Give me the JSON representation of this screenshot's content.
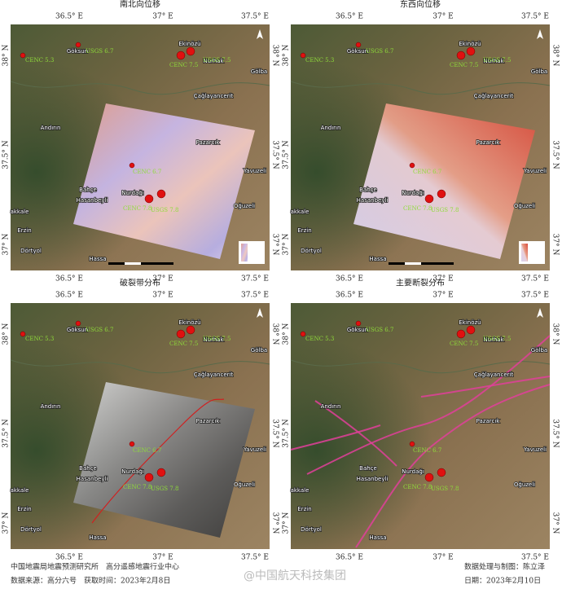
{
  "panels": [
    {
      "title": "南北向位移"
    },
    {
      "title": "东西向位移"
    },
    {
      "title": "破裂带分布"
    },
    {
      "title": "主要断裂分布"
    }
  ],
  "lon_labels": [
    "36.5° E",
    "37° E",
    "37.5° E"
  ],
  "lat_labels": [
    "38° N",
    "37.5° N",
    "37° N"
  ],
  "places": [
    "Göksun",
    "Ekinözü",
    "Nurhak",
    "Çağlayancerit",
    "Gölba",
    "Andırın",
    "Pazarcık",
    "Yavuzeli",
    "Bahçe",
    "Nurdağı",
    "Hasanbeyli",
    "Oğuzeli",
    "Erzin",
    "Dörtyol",
    "Hassa",
    "akkale"
  ],
  "quake_labels": [
    "CENC 5.3",
    "USGS 6.7",
    "CENC 7.5",
    "USGS 7.5",
    "CENC 6.7",
    "CENC 7.8",
    "USGS 7.8"
  ],
  "footer": {
    "left_1": "中国地震局地震预测研究所　高分遥感地震行业中心",
    "left_2": "数据来源：高分六号　获取时间：2023年2月8日",
    "right_1": "数据处理与制图：陈立泽",
    "right_2": "日期：2023年2月10日",
    "watermark": "@中国航天科技集团"
  }
}
